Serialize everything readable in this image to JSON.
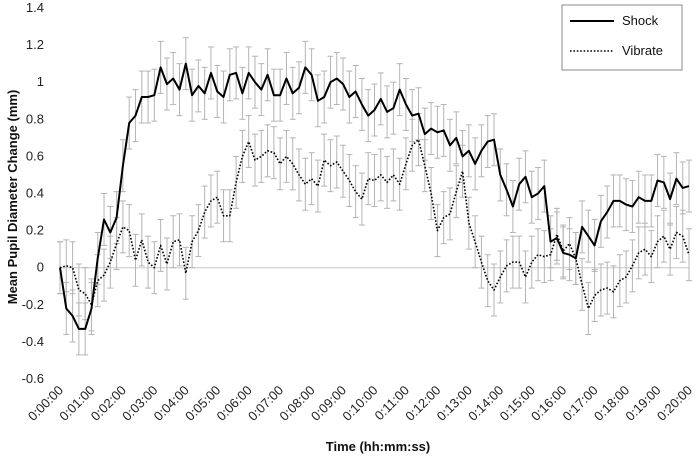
{
  "chart_data": {
    "type": "line",
    "title": "",
    "xlabel": "Time (hh:mm:ss)",
    "ylabel": "Mean Pupil Diameter Change (mm)",
    "xlim": [
      "0:00:00",
      "0:20:00"
    ],
    "ylim": [
      -0.6,
      1.4
    ],
    "y_ticks": [
      "-0.6",
      "-0.4",
      "-0.2",
      "0",
      "0.2",
      "0.4",
      "0.6",
      "0.8",
      "1",
      "1.2",
      "1.4"
    ],
    "x_ticks": [
      "0:00:00",
      "0:01:00",
      "0:02:00",
      "0:03:00",
      "0:04:00",
      "0:05:00",
      "0:06:00",
      "0:07:00",
      "0:08:00",
      "0:09:00",
      "0:10:00",
      "0:11:00",
      "0:12:00",
      "0:13:00",
      "0:14:00",
      "0:15:00",
      "0:16:00",
      "0:17:00",
      "0:18:00",
      "0:19:00",
      "0:20:00"
    ],
    "x_minutes": [
      0,
      0.2,
      0.4,
      0.6,
      0.8,
      1.0,
      1.2,
      1.4,
      1.6,
      1.8,
      2.0,
      2.2,
      2.4,
      2.6,
      2.8,
      3.0,
      3.2,
      3.4,
      3.6,
      3.8,
      4.0,
      4.2,
      4.4,
      4.6,
      4.8,
      5.0,
      5.2,
      5.4,
      5.6,
      5.8,
      6.0,
      6.2,
      6.4,
      6.6,
      6.8,
      7.0,
      7.2,
      7.4,
      7.6,
      7.8,
      8.0,
      8.2,
      8.4,
      8.6,
      8.8,
      9.0,
      9.2,
      9.4,
      9.6,
      9.8,
      10.0,
      10.2,
      10.4,
      10.6,
      10.8,
      11.0,
      11.2,
      11.4,
      11.6,
      11.8,
      12.0,
      12.2,
      12.4,
      12.6,
      12.8,
      13.0,
      13.2,
      13.4,
      13.6,
      13.8,
      14.0,
      14.2,
      14.4,
      14.6,
      14.8,
      15.0,
      15.2,
      15.4,
      15.6,
      15.8,
      16.0,
      16.2,
      16.4,
      16.6,
      16.8,
      17.0,
      17.2,
      17.4,
      17.6,
      17.8,
      18.0,
      18.2,
      18.4,
      18.6,
      18.8,
      19.0,
      19.2,
      19.4,
      19.6,
      19.8,
      20.0
    ],
    "baseline": 0,
    "grid": false,
    "legend_position": "top-right",
    "series": [
      {
        "name": "Shock",
        "style": "solid",
        "color": "#000000",
        "values": [
          0.0,
          -0.22,
          -0.26,
          -0.33,
          -0.33,
          -0.22,
          0.05,
          0.26,
          0.19,
          0.27,
          0.55,
          0.78,
          0.82,
          0.92,
          0.92,
          0.93,
          1.08,
          0.99,
          1.02,
          0.96,
          1.1,
          0.93,
          0.98,
          0.94,
          1.05,
          0.95,
          0.92,
          1.04,
          1.05,
          0.94,
          1.05,
          1.0,
          0.96,
          1.04,
          0.93,
          0.93,
          1.02,
          0.94,
          0.97,
          1.08,
          1.04,
          0.9,
          0.92,
          1.0,
          1.02,
          0.99,
          0.92,
          0.95,
          0.88,
          0.82,
          0.85,
          0.91,
          0.84,
          0.86,
          0.96,
          0.88,
          0.82,
          0.83,
          0.72,
          0.75,
          0.73,
          0.74,
          0.66,
          0.7,
          0.6,
          0.63,
          0.56,
          0.63,
          0.68,
          0.69,
          0.5,
          0.42,
          0.33,
          0.45,
          0.49,
          0.38,
          0.4,
          0.44,
          0.14,
          0.16,
          0.08,
          0.07,
          0.05,
          0.22,
          0.17,
          0.12,
          0.25,
          0.3,
          0.36,
          0.36,
          0.34,
          0.33,
          0.38,
          0.36,
          0.36,
          0.47,
          0.46,
          0.37,
          0.48,
          0.43,
          0.44
        ]
      },
      {
        "name": "Vibrate",
        "style": "dotted",
        "color": "#000000",
        "values": [
          0.0,
          0.01,
          0.0,
          -0.12,
          -0.14,
          -0.2,
          -0.07,
          -0.04,
          0.03,
          0.13,
          0.22,
          0.2,
          0.04,
          0.15,
          0.03,
          0.0,
          0.12,
          0.02,
          0.14,
          0.15,
          -0.03,
          0.14,
          0.2,
          0.3,
          0.36,
          0.38,
          0.28,
          0.28,
          0.46,
          0.6,
          0.68,
          0.58,
          0.6,
          0.63,
          0.62,
          0.56,
          0.6,
          0.56,
          0.5,
          0.45,
          0.48,
          0.44,
          0.58,
          0.55,
          0.57,
          0.52,
          0.47,
          0.41,
          0.37,
          0.48,
          0.47,
          0.5,
          0.46,
          0.5,
          0.45,
          0.56,
          0.66,
          0.69,
          0.55,
          0.4,
          0.2,
          0.27,
          0.29,
          0.41,
          0.52,
          0.24,
          0.14,
          0.03,
          -0.07,
          -0.12,
          -0.05,
          0.01,
          0.03,
          0.03,
          -0.05,
          0.03,
          0.07,
          0.06,
          0.07,
          0.18,
          0.09,
          0.13,
          0.05,
          -0.09,
          -0.22,
          -0.15,
          -0.12,
          -0.11,
          -0.13,
          -0.07,
          -0.05,
          0.01,
          0.08,
          0.1,
          0.06,
          0.14,
          0.17,
          0.1,
          0.19,
          0.17,
          0.07
        ]
      }
    ],
    "error_bar_halfwidth": 0.14
  }
}
